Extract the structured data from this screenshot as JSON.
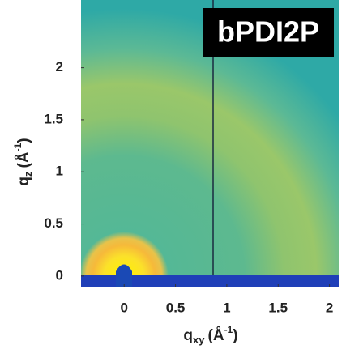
{
  "chart_data": {
    "type": "image",
    "annotation": "bPDI2P",
    "xlabel": {
      "base": "q",
      "sub": "xy",
      "unit": "(Å",
      "sup": "-1",
      "close": ")"
    },
    "ylabel": {
      "base": "q",
      "sub": "z",
      "unit": "(Å",
      "sup": "-1",
      "close": ")"
    },
    "xlim": [
      -0.42,
      2.09
    ],
    "xticks": [
      0,
      0.5,
      1,
      1.5,
      2
    ],
    "ylim": [
      -0.11,
      2.65
    ],
    "yticks": [
      0,
      0.5,
      1,
      1.5,
      2
    ]
  }
}
